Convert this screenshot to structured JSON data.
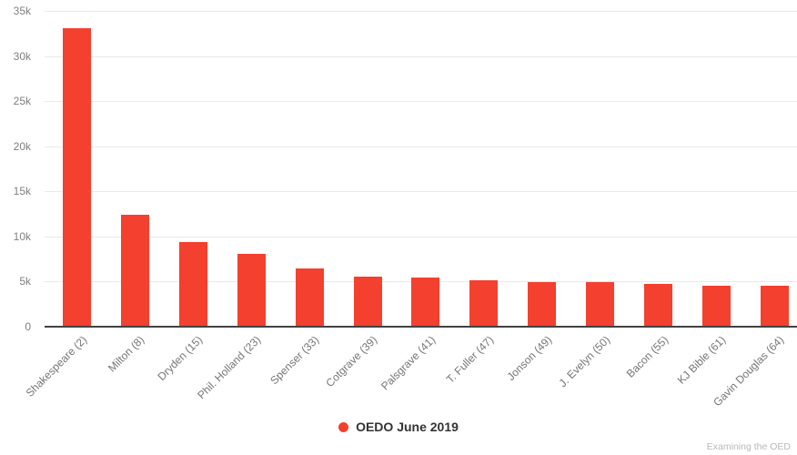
{
  "chart_data": {
    "type": "bar",
    "title": "",
    "xlabel": "",
    "ylabel": "",
    "categories": [
      "Shakespeare (2)",
      "Milton (8)",
      "Dryden (15)",
      "Phil. Holland (23)",
      "Spenser (33)",
      "Cotgrave (39)",
      "Palsgrave (41)",
      "T. Fuller (47)",
      "Jonson (49)",
      "J. Evelyn (50)",
      "Bacon (55)",
      "KJ Bible (61)",
      "Gavin Douglas (64)"
    ],
    "values": [
      33100,
      12400,
      9400,
      8050,
      6450,
      5550,
      5480,
      5170,
      4950,
      4930,
      4770,
      4540,
      4490
    ],
    "ylim": [
      0,
      35000
    ],
    "ytick_step": 5000,
    "ytick_labels": [
      "0",
      "5k",
      "10k",
      "15k",
      "20k",
      "25k",
      "30k",
      "35k"
    ],
    "grid": "horizontal",
    "bar_color": "#f4402e",
    "legend": {
      "label": "OEDO June 2019",
      "marker": "circle-icon",
      "marker_color": "#f4402e",
      "position": "bottom-center"
    }
  },
  "footer": {
    "credit": "Examining the OED"
  },
  "colors": {
    "background": "#ffffff",
    "gridline": "#e9e9e9",
    "axis_line": "#424242",
    "tick_label": "#808080",
    "category_label": "#757575",
    "legend_text": "#333333",
    "credit_text": "#b4b9bd"
  }
}
